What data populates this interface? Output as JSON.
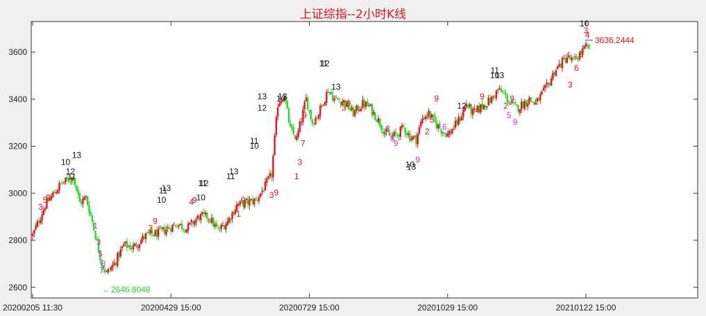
{
  "chart_data": {
    "type": "candlestick",
    "title": "上证综指--2小时K线",
    "xlabel": "",
    "ylabel": "",
    "ylim": [
      2555,
      3730
    ],
    "yticks": [
      2600,
      2800,
      3000,
      3200,
      3400,
      3600
    ],
    "xtick_labels": [
      "20200205 11:30",
      "20200429 15:00",
      "20200729 15:00",
      "20201029 15:00",
      "20210122 15:00"
    ],
    "grid": false,
    "legend": "none",
    "colors": {
      "up": "#e8141e",
      "down": "#22dd22",
      "count_down": "#d633d6",
      "count_top": "#111111"
    },
    "annotations": {
      "high_label": "3636.2444",
      "low_label": "←2646.8048"
    },
    "counts_red": [
      {
        "bar": 5,
        "y": 2930,
        "t": "3"
      },
      {
        "bar": 8,
        "y": 2960,
        "t": "5"
      },
      {
        "bar": 10,
        "y": 2970,
        "t": "9"
      },
      {
        "bar": 75,
        "y": 2840,
        "t": "3"
      },
      {
        "bar": 78,
        "y": 2870,
        "t": "9"
      },
      {
        "bar": 101,
        "y": 2950,
        "t": "4"
      },
      {
        "bar": 103,
        "y": 2960,
        "t": "9"
      },
      {
        "bar": 131,
        "y": 2900,
        "t": "1"
      },
      {
        "bar": 134,
        "y": 2960,
        "t": "9"
      },
      {
        "bar": 152,
        "y": 2980,
        "t": "3"
      },
      {
        "bar": 155,
        "y": 2990,
        "t": "9"
      },
      {
        "bar": 168,
        "y": 3060,
        "t": "1"
      },
      {
        "bar": 170,
        "y": 3120,
        "t": "3"
      },
      {
        "bar": 172,
        "y": 3200,
        "t": "7"
      },
      {
        "bar": 173,
        "y": 3320,
        "t": "9"
      },
      {
        "bar": 198,
        "y": 3350,
        "t": "3"
      },
      {
        "bar": 201,
        "y": 3370,
        "t": "9"
      },
      {
        "bar": 251,
        "y": 3250,
        "t": "2"
      },
      {
        "bar": 254,
        "y": 3300,
        "t": "5"
      },
      {
        "bar": 257,
        "y": 3390,
        "t": "9"
      },
      {
        "bar": 283,
        "y": 3340,
        "t": "4"
      },
      {
        "bar": 286,
        "y": 3400,
        "t": "9"
      },
      {
        "bar": 301,
        "y": 3360,
        "t": "2"
      },
      {
        "bar": 305,
        "y": 3390,
        "t": "9"
      },
      {
        "bar": 342,
        "y": 3450,
        "t": "3"
      },
      {
        "bar": 346,
        "y": 3520,
        "t": "6"
      },
      {
        "bar": 349,
        "y": 3580,
        "t": "9"
      },
      {
        "bar": 352,
        "y": 3680,
        "t": "3"
      },
      {
        "bar": 353,
        "y": 3660,
        "t": "4"
      }
    ],
    "counts_magenta": [
      {
        "bar": 40,
        "y": 2850,
        "t": "1"
      },
      {
        "bar": 42,
        "y": 2780,
        "t": "3"
      },
      {
        "bar": 43,
        "y": 2730,
        "t": "5"
      },
      {
        "bar": 45,
        "y": 2690,
        "t": "8"
      },
      {
        "bar": 44,
        "y": 2660,
        "t": "7"
      },
      {
        "bar": 226,
        "y": 3260,
        "t": "3"
      },
      {
        "bar": 229,
        "y": 3220,
        "t": "6"
      },
      {
        "bar": 231,
        "y": 3200,
        "t": "9"
      },
      {
        "bar": 245,
        "y": 3130,
        "t": "9"
      },
      {
        "bar": 262,
        "y": 3270,
        "t": "6"
      },
      {
        "bar": 265,
        "y": 3240,
        "t": "9"
      },
      {
        "bar": 303,
        "y": 3320,
        "t": "5"
      },
      {
        "bar": 307,
        "y": 3290,
        "t": "9"
      }
    ],
    "counts_black": [
      {
        "bar": 21,
        "y": 3120,
        "t": "10"
      },
      {
        "bar": 28,
        "y": 3150,
        "t": "13"
      },
      {
        "bar": 24,
        "y": 3080,
        "t": "12"
      },
      {
        "bar": 25,
        "y": 3060,
        "t": "11"
      },
      {
        "bar": 83,
        "y": 3000,
        "t": "11"
      },
      {
        "bar": 85,
        "y": 3010,
        "t": "13"
      },
      {
        "bar": 82,
        "y": 2960,
        "t": "10"
      },
      {
        "bar": 108,
        "y": 3030,
        "t": "11"
      },
      {
        "bar": 109,
        "y": 3030,
        "t": "12"
      },
      {
        "bar": 107,
        "y": 2970,
        "t": "10"
      },
      {
        "bar": 126,
        "y": 3060,
        "t": "11"
      },
      {
        "bar": 128,
        "y": 3080,
        "t": "13"
      },
      {
        "bar": 141,
        "y": 3210,
        "t": "11"
      },
      {
        "bar": 141,
        "y": 3190,
        "t": "10"
      },
      {
        "bar": 146,
        "y": 3400,
        "t": "13"
      },
      {
        "bar": 146,
        "y": 3350,
        "t": "12"
      },
      {
        "bar": 159,
        "y": 3400,
        "t": "13"
      },
      {
        "bar": 158,
        "y": 3390,
        "t": "10"
      },
      {
        "bar": 185,
        "y": 3540,
        "t": "11"
      },
      {
        "bar": 186,
        "y": 3540,
        "t": "12"
      },
      {
        "bar": 193,
        "y": 3440,
        "t": "13"
      },
      {
        "bar": 240,
        "y": 3110,
        "t": "10"
      },
      {
        "bar": 241,
        "y": 3100,
        "t": "13"
      },
      {
        "bar": 273,
        "y": 3360,
        "t": "12"
      },
      {
        "bar": 294,
        "y": 3510,
        "t": "11"
      },
      {
        "bar": 294,
        "y": 3490,
        "t": "10"
      },
      {
        "bar": 297,
        "y": 3490,
        "t": "13"
      },
      {
        "bar": 351,
        "y": 3710,
        "t": "10"
      }
    ],
    "anchors": [
      [
        0,
        2820
      ],
      [
        8,
        2950
      ],
      [
        18,
        3040
      ],
      [
        26,
        3070
      ],
      [
        30,
        2960
      ],
      [
        34,
        2980
      ],
      [
        38,
        2880
      ],
      [
        44,
        2700
      ],
      [
        47,
        2660
      ],
      [
        52,
        2700
      ],
      [
        58,
        2780
      ],
      [
        64,
        2770
      ],
      [
        72,
        2820
      ],
      [
        80,
        2830
      ],
      [
        86,
        2850
      ],
      [
        92,
        2870
      ],
      [
        98,
        2850
      ],
      [
        106,
        2900
      ],
      [
        112,
        2900
      ],
      [
        118,
        2840
      ],
      [
        124,
        2880
      ],
      [
        130,
        2950
      ],
      [
        136,
        2960
      ],
      [
        142,
        2970
      ],
      [
        148,
        3030
      ],
      [
        152,
        3080
      ],
      [
        156,
        3380
      ],
      [
        160,
        3420
      ],
      [
        164,
        3270
      ],
      [
        168,
        3230
      ],
      [
        174,
        3400
      ],
      [
        178,
        3300
      ],
      [
        182,
        3340
      ],
      [
        188,
        3440
      ],
      [
        192,
        3400
      ],
      [
        198,
        3390
      ],
      [
        204,
        3340
      ],
      [
        210,
        3380
      ],
      [
        214,
        3370
      ],
      [
        220,
        3310
      ],
      [
        224,
        3260
      ],
      [
        228,
        3240
      ],
      [
        232,
        3250
      ],
      [
        236,
        3280
      ],
      [
        240,
        3240
      ],
      [
        244,
        3230
      ],
      [
        248,
        3320
      ],
      [
        252,
        3340
      ],
      [
        256,
        3300
      ],
      [
        260,
        3270
      ],
      [
        264,
        3250
      ],
      [
        268,
        3280
      ],
      [
        272,
        3320
      ],
      [
        276,
        3380
      ],
      [
        280,
        3340
      ],
      [
        284,
        3360
      ],
      [
        288,
        3380
      ],
      [
        292,
        3400
      ],
      [
        296,
        3440
      ],
      [
        300,
        3420
      ],
      [
        304,
        3380
      ],
      [
        308,
        3360
      ],
      [
        312,
        3380
      ],
      [
        316,
        3400
      ],
      [
        320,
        3380
      ],
      [
        324,
        3420
      ],
      [
        328,
        3460
      ],
      [
        332,
        3520
      ],
      [
        336,
        3550
      ],
      [
        340,
        3580
      ],
      [
        344,
        3560
      ],
      [
        348,
        3590
      ],
      [
        352,
        3620
      ]
    ]
  }
}
